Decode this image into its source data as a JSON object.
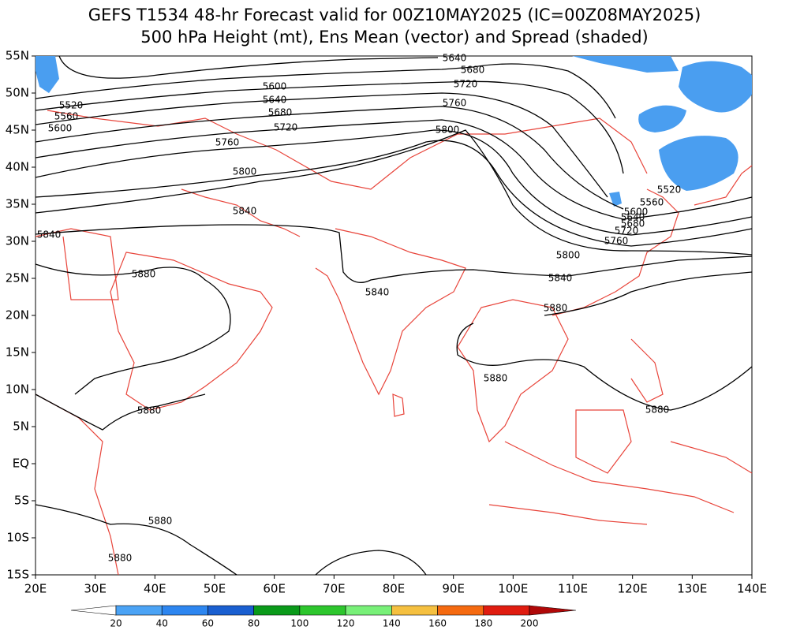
{
  "header": {
    "title": "GEFS T1534 48-hr Forecast valid for 00Z10MAY2025 (IC=00Z08MAY2025)",
    "subtitle": "500 hPa Height (mt), Ens Mean (vector) and Spread (shaded)"
  },
  "map": {
    "lat_labels": [
      "55N",
      "50N",
      "45N",
      "40N",
      "35N",
      "30N",
      "25N",
      "20N",
      "15N",
      "10N",
      "5N",
      "EQ",
      "5S",
      "10S",
      "15S"
    ],
    "lon_labels": [
      "20E",
      "30E",
      "40E",
      "50E",
      "60E",
      "70E",
      "80E",
      "90E",
      "100E",
      "110E",
      "120E",
      "130E",
      "140E"
    ],
    "contour_labels": [
      "5640",
      "5680",
      "5720",
      "5760",
      "5800",
      "5600",
      "5640",
      "5680",
      "5720",
      "5760",
      "5800",
      "5840",
      "5880",
      "5840",
      "5520",
      "5560",
      "5600",
      "5840",
      "5880",
      "5800",
      "5760",
      "5720",
      "5520",
      "5560",
      "5600",
      "5640",
      "5680",
      "5840",
      "5880",
      "5880",
      "5880",
      "5880",
      "5880"
    ]
  },
  "colorbar": {
    "labels": [
      "20",
      "40",
      "60",
      "80",
      "100",
      "120",
      "140",
      "160",
      "180",
      "200"
    ]
  }
}
